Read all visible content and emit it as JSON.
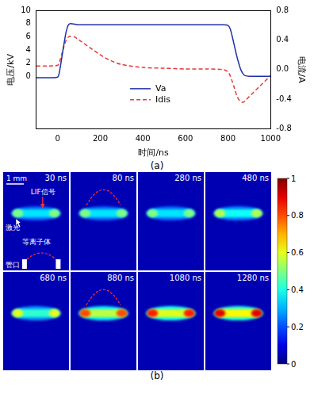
{
  "chart_data": {
    "type": "line",
    "caption": "(a)",
    "x_label": "时间/ns",
    "y_label": "电压/kV",
    "y2_label": "电流/A",
    "x": [
      -100,
      -50,
      0,
      10,
      20,
      30,
      40,
      50,
      60,
      80,
      100,
      150,
      200,
      250,
      300,
      400,
      500,
      600,
      700,
      780,
      800,
      810,
      820,
      830,
      840,
      850,
      860,
      870,
      880,
      900,
      950,
      1000
    ],
    "series": [
      {
        "name": "Va",
        "color": "#1f2fa8",
        "line_style": "solid",
        "values": [
          -0.2,
          -0.2,
          -0.1,
          1.0,
          3.0,
          5.0,
          6.8,
          7.8,
          8.0,
          7.9,
          7.8,
          7.8,
          7.8,
          7.8,
          7.8,
          7.8,
          7.8,
          7.8,
          7.8,
          7.8,
          7.7,
          7.2,
          6.0,
          4.6,
          3.2,
          2.0,
          1.0,
          0.4,
          0.1,
          0.0,
          0.0,
          0.0
        ]
      },
      {
        "name": "Idis",
        "color": "#e8383a",
        "line_style": "dashed",
        "axis": "y2",
        "values": [
          0.05,
          0.05,
          0.06,
          0.12,
          0.22,
          0.32,
          0.4,
          0.44,
          0.45,
          0.44,
          0.4,
          0.3,
          0.2,
          0.12,
          0.07,
          0.03,
          0.02,
          0.01,
          0.01,
          0.0,
          -0.03,
          -0.08,
          -0.16,
          -0.25,
          -0.34,
          -0.4,
          -0.43,
          -0.44,
          -0.42,
          -0.36,
          -0.22,
          -0.08
        ]
      }
    ],
    "xlim": [
      -100,
      1000
    ],
    "xticks": [
      0,
      200,
      400,
      600,
      800,
      1000
    ],
    "ylim": [
      -8,
      10
    ],
    "yticks": [
      0,
      2,
      4,
      6,
      8,
      10
    ],
    "y2lim": [
      -0.8,
      0.8
    ],
    "y2ticks": [
      -0.8,
      -0.4,
      {
        "value": 0,
        "label": "0.0"
      },
      0.4,
      0.8
    ],
    "grid": false,
    "legend": "center"
  },
  "image_panel": {
    "caption": "(b)",
    "annotations": {
      "scale": "1 mm",
      "signal": "LIF信号",
      "laser": "激光",
      "plasma": "等离子体",
      "nozzle": "管口"
    },
    "frames": [
      {
        "time": "30 ns",
        "peak": 0.5,
        "plasma_front": false
      },
      {
        "time": "80 ns",
        "peak": 0.5,
        "plasma_front": true
      },
      {
        "time": "280 ns",
        "peak": 0.5,
        "plasma_front": false
      },
      {
        "time": "480 ns",
        "peak": 0.55,
        "plasma_front": false
      },
      {
        "time": "680 ns",
        "peak": 0.6,
        "plasma_front": false
      },
      {
        "time": "880 ns",
        "peak": 0.8,
        "plasma_front": true
      },
      {
        "time": "1080 ns",
        "peak": 0.85,
        "plasma_front": false
      },
      {
        "time": "1280 ns",
        "peak": 0.9,
        "plasma_front": false
      }
    ],
    "colorbar": {
      "range": [
        0,
        1
      ],
      "ticks": [
        0,
        0.2,
        0.4,
        0.6,
        0.8,
        1
      ]
    }
  }
}
